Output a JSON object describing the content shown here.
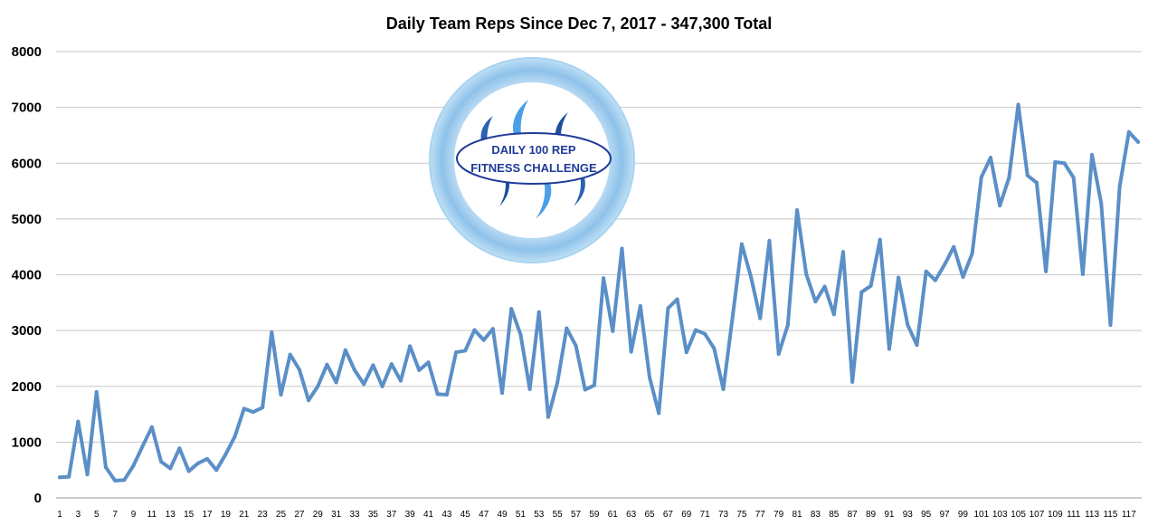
{
  "chart_data": {
    "type": "line",
    "title": "Daily Team Reps Since Dec 7, 2017 - 347,300 Total",
    "xlabel": "",
    "ylabel": "",
    "ylim": [
      0,
      8000
    ],
    "yticks": [
      0,
      1000,
      2000,
      3000,
      4000,
      5000,
      6000,
      7000,
      8000
    ],
    "xticks": [
      1,
      3,
      5,
      7,
      9,
      11,
      13,
      15,
      17,
      19,
      21,
      23,
      25,
      27,
      29,
      31,
      33,
      35,
      37,
      39,
      41,
      43,
      45,
      47,
      49,
      51,
      53,
      55,
      57,
      59,
      61,
      63,
      65,
      67,
      69,
      71,
      73,
      75,
      77,
      79,
      81,
      83,
      85,
      87,
      89,
      91,
      93,
      95,
      97,
      99,
      101,
      103,
      105,
      107,
      109,
      111,
      113,
      115,
      117
    ],
    "grid": "horizontal",
    "line_color": "#5b8fc7",
    "series": [
      {
        "values": [
          370,
          380,
          1370,
          420,
          1900,
          550,
          310,
          320,
          580,
          930,
          1270,
          650,
          530,
          890,
          480,
          620,
          700,
          500,
          780,
          1100,
          1600,
          1540,
          1620,
          2970,
          1850,
          2570,
          2300,
          1750,
          2000,
          2390,
          2070,
          2650,
          2290,
          2040,
          2380,
          2000,
          2400,
          2100,
          2720,
          2290,
          2430,
          1860,
          1850,
          2610,
          2640,
          3010,
          2830,
          3030,
          1880,
          3390,
          2930,
          1950,
          3330,
          1450,
          2070,
          3040,
          2730,
          1940,
          2020,
          3940,
          2990,
          4470,
          2620,
          3440,
          2160,
          1520,
          3400,
          3560,
          2610,
          3010,
          2940,
          2680,
          1950,
          3240,
          4550,
          3960,
          3220,
          4610,
          2580,
          3100,
          5160,
          4010,
          3520,
          3790,
          3290,
          4410,
          2080,
          3690,
          3800,
          4630,
          2670,
          3950,
          3100,
          2740,
          4060,
          3900,
          4180,
          4500,
          3960,
          4380,
          5750,
          6100,
          5240,
          5740,
          7050,
          5780,
          5650,
          4060,
          6020,
          6000,
          5740,
          4010,
          6150,
          5280,
          3100,
          5580,
          6560,
          6380
        ]
      }
    ],
    "image": {
      "logo_line1": "DAILY 100 REP",
      "logo_line2": "FITNESS CHALLENGE"
    }
  }
}
